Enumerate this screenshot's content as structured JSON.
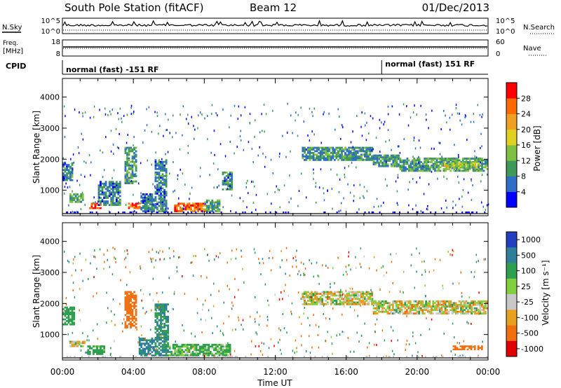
{
  "header": {
    "station": "South Pole Station (fitACF)",
    "beam": "Beam 12",
    "date": "01/Dec/2013"
  },
  "strips": {
    "nsky_label": "N.Sky",
    "nsky_ticks": [
      "10^5",
      "10^0"
    ],
    "nsearch_label": "N.Search",
    "freq_label": "Freq.",
    "freq_unit": "[MHz]",
    "freq_ticks": [
      "18",
      "8"
    ],
    "nave_ticks": [
      "60",
      "0"
    ],
    "nave_label": "Nave",
    "cpid_label": "CPID",
    "cpid_left": "normal (fast) -151 RF",
    "cpid_right": "normal (fast) 151 RF",
    "cpid_change_hour": 18.0
  },
  "chart_data": [
    {
      "type": "heatmap",
      "panel": "power",
      "ylabel": "Slant Range [km]",
      "xlabel": "Time UT",
      "x_ticks": [
        "00:00",
        "04:00",
        "08:00",
        "12:00",
        "16:00",
        "20:00",
        "00:00"
      ],
      "x_range_hours": [
        0,
        24
      ],
      "y_ticks": [
        1000,
        2000,
        3000,
        4000
      ],
      "y_range_km": [
        180,
        4600
      ],
      "colorbar_label": "Power [dB]",
      "colorbar_ticks": [
        "4",
        "8",
        "12",
        "16",
        "20",
        "24",
        "28"
      ],
      "colorbar_colors": [
        "#0000ff",
        "#2f6ec8",
        "#3f9a5a",
        "#7fc043",
        "#e0d020",
        "#f0a020",
        "#ff6a00",
        "#ff0000"
      ],
      "regions": [
        {
          "t": [
            0.0,
            0.6
          ],
          "r": [
            1300,
            1900
          ],
          "value": 8
        },
        {
          "t": [
            0.4,
            1.2
          ],
          "r": [
            600,
            900
          ],
          "value": 10
        },
        {
          "t": [
            1.5,
            2.2
          ],
          "r": [
            400,
            600
          ],
          "value": 28
        },
        {
          "t": [
            2.0,
            3.3
          ],
          "r": [
            500,
            1300
          ],
          "value": 8
        },
        {
          "t": [
            3.5,
            4.2
          ],
          "r": [
            1200,
            2400
          ],
          "value": 10
        },
        {
          "t": [
            3.7,
            4.4
          ],
          "r": [
            400,
            600
          ],
          "value": 26
        },
        {
          "t": [
            4.4,
            5.2
          ],
          "r": [
            300,
            900
          ],
          "value": 8
        },
        {
          "t": [
            5.2,
            5.9
          ],
          "r": [
            300,
            2000
          ],
          "value": 8
        },
        {
          "t": [
            6.3,
            8.1
          ],
          "r": [
            300,
            600
          ],
          "value": 26
        },
        {
          "t": [
            8.0,
            8.9
          ],
          "r": [
            300,
            700
          ],
          "value": 10
        },
        {
          "t": [
            9.0,
            9.6
          ],
          "r": [
            1000,
            1600
          ],
          "value": 8
        },
        {
          "t": [
            13.5,
            17.5
          ],
          "r": [
            1950,
            2400
          ],
          "value": 9
        },
        {
          "t": [
            17.5,
            19.0
          ],
          "r": [
            1750,
            2150
          ],
          "value": 10
        },
        {
          "t": [
            19.0,
            24.0
          ],
          "r": [
            1600,
            2050
          ],
          "value": 11
        },
        {
          "t": [
            21.5,
            23.5
          ],
          "r": [
            1700,
            1900
          ],
          "value": 16
        }
      ]
    },
    {
      "type": "heatmap",
      "panel": "velocity",
      "ylabel": "Slant Range [km]",
      "xlabel": "Time UT",
      "x_ticks": [
        "00:00",
        "04:00",
        "08:00",
        "12:00",
        "16:00",
        "20:00",
        "00:00"
      ],
      "x_range_hours": [
        0,
        24
      ],
      "y_ticks": [
        1000,
        2000,
        3000,
        4000
      ],
      "y_range_km": [
        180,
        4600
      ],
      "colorbar_label": "Velocity [m s⁻¹]",
      "colorbar_ticks": [
        "1000",
        "500",
        "100",
        "25",
        "-25",
        "-100",
        "-500",
        "-1000"
      ],
      "colorbar_colors": [
        "#2040c0",
        "#2f7f9a",
        "#2f9f4f",
        "#80d040",
        "#c8c8c8",
        "#e8a020",
        "#f07010",
        "#e00000"
      ],
      "regions": [
        {
          "t": [
            0.0,
            0.7
          ],
          "r": [
            1300,
            1900
          ],
          "value": 300
        },
        {
          "t": [
            0.4,
            1.3
          ],
          "r": [
            600,
            800
          ],
          "value": 0
        },
        {
          "t": [
            1.4,
            2.4
          ],
          "r": [
            350,
            650
          ],
          "value": 200
        },
        {
          "t": [
            3.5,
            4.2
          ],
          "r": [
            1200,
            2400
          ],
          "value": -300
        },
        {
          "t": [
            4.3,
            5.2
          ],
          "r": [
            300,
            900
          ],
          "value": 600
        },
        {
          "t": [
            5.2,
            6.0
          ],
          "r": [
            300,
            2000
          ],
          "value": 500
        },
        {
          "t": [
            6.0,
            9.5
          ],
          "r": [
            300,
            700
          ],
          "value": 120
        },
        {
          "t": [
            13.5,
            17.5
          ],
          "r": [
            1950,
            2400
          ],
          "value": 0
        },
        {
          "t": [
            17.5,
            24.0
          ],
          "r": [
            1650,
            2100
          ],
          "value": 0
        },
        {
          "t": [
            22.0,
            23.8
          ],
          "r": [
            500,
            650
          ],
          "value": -300
        }
      ]
    }
  ]
}
